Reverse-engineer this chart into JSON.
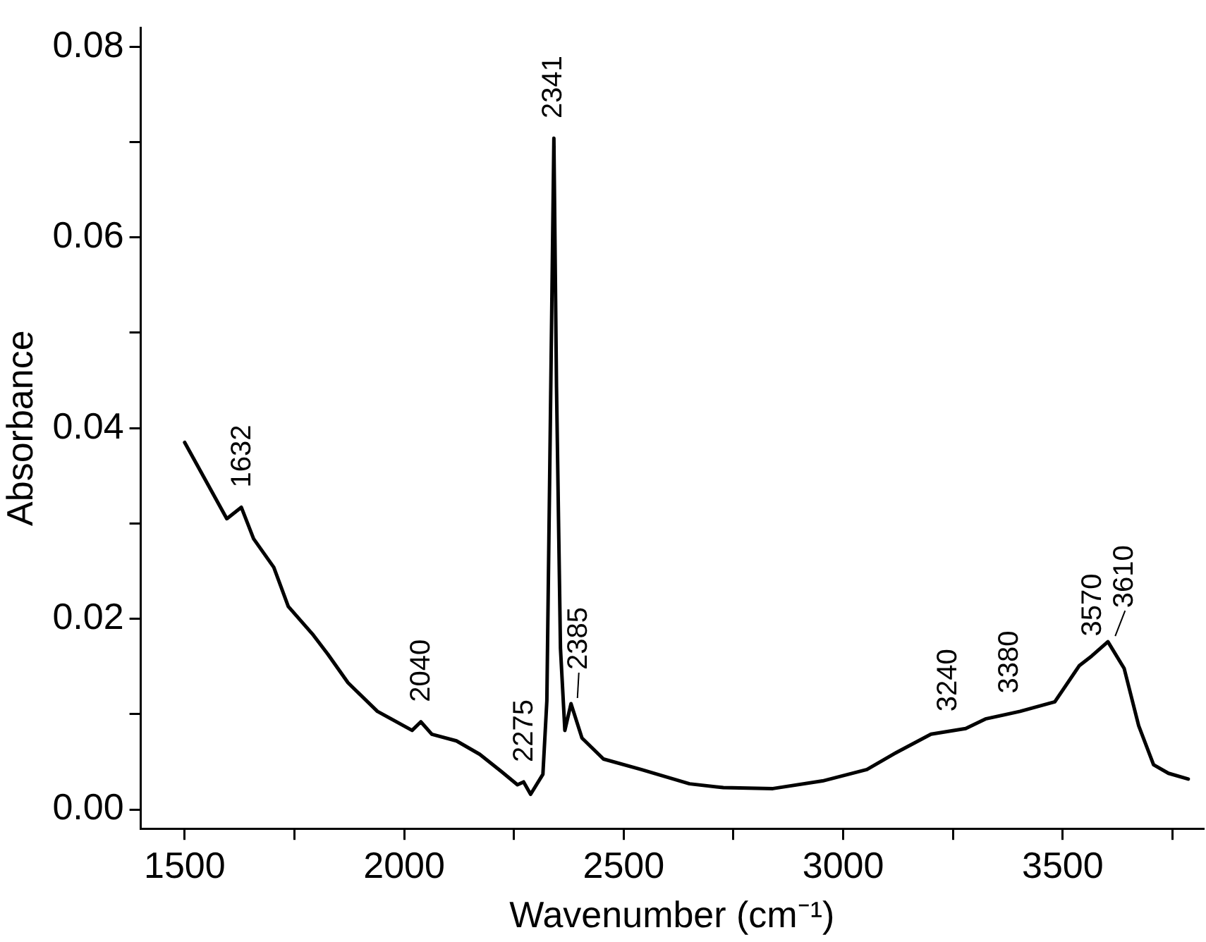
{
  "chart_data": {
    "type": "line",
    "xlabel": "Wavenumber (cm⁻¹)",
    "ylabel": "Absorbance",
    "xlim": [
      1400,
      3820
    ],
    "xticks": [
      1500,
      {
        "value": 1750,
        "label": null
      },
      2000,
      {
        "value": 2250,
        "label": null
      },
      2500,
      {
        "value": 2750,
        "label": null
      },
      3000,
      {
        "value": 3250,
        "label": null
      },
      3500,
      {
        "value": 3750,
        "label": null
      }
    ],
    "ylim": [
      -0.002,
      0.082
    ],
    "yticks": [
      {
        "value": 0,
        "label": "0.00"
      },
      {
        "value": 0.01,
        "label": null
      },
      {
        "value": 0.02,
        "label": "0.02"
      },
      {
        "value": 0.03,
        "label": null
      },
      {
        "value": 0.04,
        "label": "0.04"
      },
      {
        "value": 0.05,
        "label": null
      },
      {
        "value": 0.06,
        "label": "0.06"
      },
      {
        "value": 0.07,
        "label": null
      },
      {
        "value": 0.08,
        "label": "0.08"
      }
    ],
    "series": [
      {
        "color": "#000000",
        "x": [
          1500,
          1596,
          1629,
          1657,
          1703,
          1736,
          1793,
          1826,
          1872,
          1939,
          2018,
          2038,
          2063,
          2119,
          2172,
          2221,
          2258,
          2272,
          2288,
          2316,
          2325,
          2331,
          2341,
          2347,
          2356,
          2366,
          2380,
          2405,
          2454,
          2540,
          2650,
          2727,
          2840,
          2953,
          3054,
          3122,
          3200,
          3279,
          3324,
          3403,
          3482,
          3538,
          3566,
          3603,
          3640,
          3673,
          3707,
          3741,
          3786
        ],
        "values": [
          0.0385,
          0.0305,
          0.0317,
          0.0284,
          0.0254,
          0.0213,
          0.0183,
          0.0163,
          0.0133,
          0.0103,
          0.0083,
          0.0092,
          0.0079,
          0.0072,
          0.0058,
          0.004,
          0.0026,
          0.0029,
          0.0016,
          0.0037,
          0.0114,
          0.0334,
          0.0704,
          0.0443,
          0.0169,
          0.0083,
          0.0111,
          0.0075,
          0.0053,
          0.0042,
          0.0027,
          0.0023,
          0.0022,
          0.003,
          0.0042,
          0.006,
          0.0079,
          0.0085,
          0.0095,
          0.0103,
          0.0113,
          0.0151,
          0.0161,
          0.0176,
          0.0148,
          0.0088,
          0.0047,
          0.0038,
          0.0032
        ]
      }
    ],
    "annotations": [
      {
        "text": "1632",
        "x": 1632,
        "y": 0.0317
      },
      {
        "text": "2040",
        "x": 2040,
        "y": 0.0092
      },
      {
        "text": "2275",
        "x": 2275,
        "y": 0.0029
      },
      {
        "text": "2341",
        "x": 2341,
        "y": 0.0704
      },
      {
        "text": "2385",
        "x": 2385,
        "y": 0.0111
      },
      {
        "text": "3240",
        "x": 3240,
        "y": 0.0082
      },
      {
        "text": "3380",
        "x": 3380,
        "y": 0.0101
      },
      {
        "text": "3570",
        "x": 3570,
        "y": 0.0161
      },
      {
        "text": "3610",
        "x": 3610,
        "y": 0.0176
      }
    ]
  }
}
